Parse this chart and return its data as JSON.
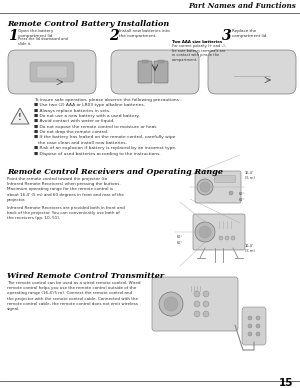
{
  "page_bg": "#ffffff",
  "header_text": "Part Names and Functions",
  "header_line_color": "#555555",
  "footer_number": "15",
  "footer_line_color": "#555555",
  "section1_title": "Remote Control Battery Installation",
  "step1_num": "1",
  "step1_text": "Open the battery\ncompartment lid.",
  "step1_note": "Press the lid downward and\nslide it.",
  "step2_num": "2",
  "step2_text": "Install new batteries into\nthe compartment.",
  "step2_note_bold": "Two AAA size batteries",
  "step2_note": "For correct polarity (+ and –),\nbe sure battery terminals are\nin contact with pins in the\ncompartment.",
  "step3_num": "3",
  "step3_text": "Replace the\ncompartment lid.",
  "warning_text": "To insure safe operation, please observe the following precautions :\n■ Use two (2) AAA or LR03 type alkaline batteries.\n■ Always replace batteries in sets.\n■ Do not use a new battery with a used battery.\n■ Avoid contact with water or liquid.\n■ Do not expose the remote control to moisture or heat.\n■ Do not drop the remote control.\n■ If the battery has leaked on the remote control, carefully wipe\n   the case clean and install new batteries.\n■ Risk of an explosion if battery is replaced by an incorrect type.\n■ Dispose of used batteries according to the instructions.",
  "section2_title": "Remote Control Receivers and Operating Range",
  "section2_text1": "Point the remote control toward the projector (to\nInfrared Remote Receivers) when pressing the buttons.\nMaximum operating range for the remote control is\nabout 16.4' (5 m) and 60 degrees in front and rear of the\nprojector.",
  "section2_text2": "Infrared Remote Receivers are provided both in front and\nback of the projector. You can conveniently use both of\nthe receivers (pp. 10, 51).",
  "range_label_top": "16.4'\n(5 m)",
  "range_label_bot": "16.4'\n(5 m)",
  "angle_label": "60°",
  "section3_title": "Wired Remote Control Transmitter",
  "section3_text": "The remote control can be used as a wired remote control. Wired\nremote control helps you use the remote control outside of the\noperating range (16.4'/5 m). Connect the remote control and\nthe projector with the remote control cable. Connected with the\nremote control cable, the remote control does not emit wireless\nsignal.",
  "text_color": "#333333",
  "title_color": "#000000",
  "step_num_size": 10,
  "title_size": 5.8,
  "body_size": 3.5,
  "note_size": 3.0,
  "header_size": 5.2,
  "warn_size": 3.2,
  "footer_size": 7.5
}
